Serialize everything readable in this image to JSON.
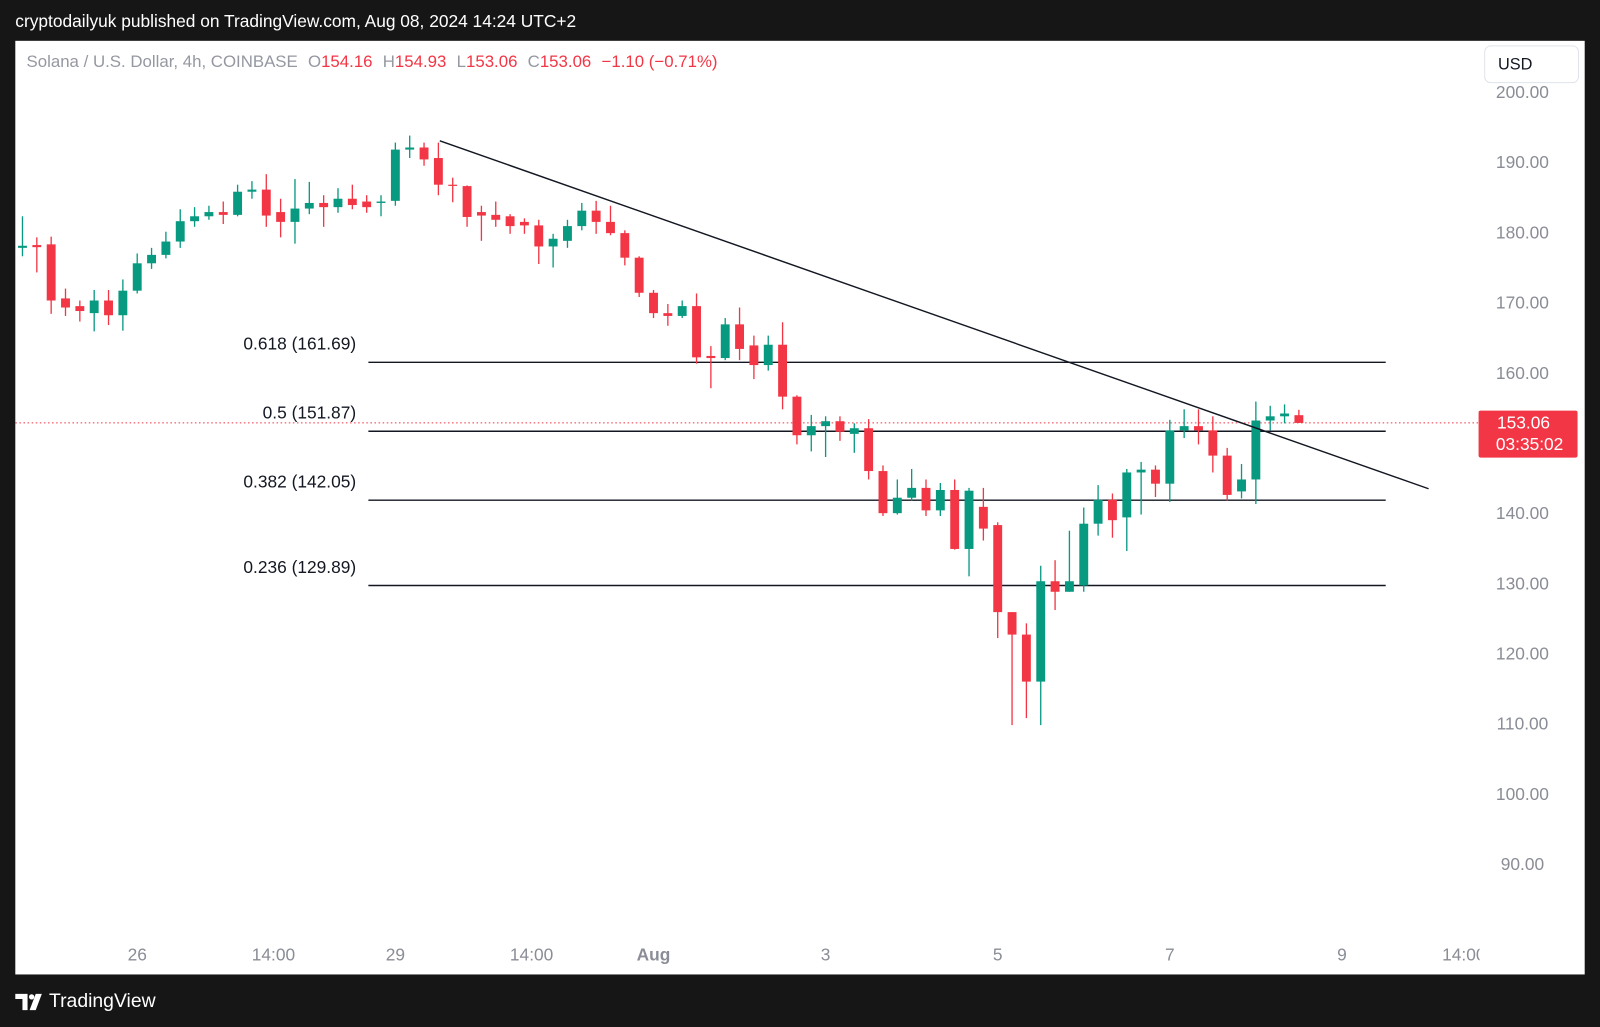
{
  "header": {
    "published": "cryptodailyuk published on TradingView.com, Aug 08, 2024 14:24 UTC+2"
  },
  "footer": {
    "brand": "TradingView"
  },
  "chart_data": {
    "type": "candlestick",
    "title": "Solana / U.S. Dollar, 4h, COINBASE",
    "ohlc_letters": [
      "O",
      "H",
      "L",
      "C"
    ],
    "change": "−1.10 (−0.71%)",
    "currency": "USD",
    "countdown": "03:35:02",
    "up_color": "#089981",
    "down_color": "#f23645",
    "x": [
      0,
      1,
      2,
      3,
      4,
      5,
      6,
      7,
      8,
      9,
      10,
      11,
      12,
      13,
      14,
      15,
      16,
      17,
      18,
      19,
      20,
      21,
      22,
      23,
      24,
      25,
      26,
      27,
      28,
      29,
      30,
      31,
      32,
      33,
      34,
      35,
      36,
      37,
      38,
      39,
      40,
      41,
      42,
      43,
      44,
      45,
      46,
      47,
      48,
      49,
      50,
      51,
      52,
      53,
      54,
      55,
      56,
      57,
      58,
      59,
      60,
      61,
      62,
      63,
      64,
      65,
      66,
      67,
      68,
      69,
      70,
      71,
      72,
      73,
      74,
      75,
      76,
      77,
      78,
      79,
      80,
      81,
      82,
      83,
      84,
      85,
      86,
      87,
      88,
      89
    ],
    "open": [
      178.0,
      178.4,
      178.5,
      170.8,
      169.7,
      168.7,
      170.5,
      168.4,
      171.9,
      175.8,
      177,
      178.9,
      181.8,
      182.5,
      183.1,
      182.7,
      186,
      186.3,
      183.1,
      181.7,
      183.6,
      184.4,
      183.8,
      185.0,
      184.6,
      184.4,
      184.7,
      192,
      192.3,
      190.8,
      187,
      186.8,
      183.1,
      182.7,
      182.5,
      181.7,
      181.2,
      178.2,
      179,
      181.1,
      183.3,
      181.7,
      180.1,
      176.6,
      171.6,
      168.7,
      168.3,
      169.7,
      162.6,
      162.3,
      167.1,
      164.1,
      161.3,
      164.2,
      156.8,
      151.3,
      152.6,
      153.3,
      151.5,
      152.3,
      146.2,
      140.2,
      142.4,
      143.8,
      140.6,
      143.5,
      135.1,
      141.1,
      138.5,
      126.1,
      122.9,
      116.2,
      130.5,
      129.0,
      129.9,
      138.7,
      142.1,
      139.6,
      146,
      146.4,
      144.4,
      152,
      152.6,
      152,
      148.4,
      143.3,
      145,
      153.4,
      154,
      154.16
    ],
    "high": [
      182.5,
      179.5,
      179.6,
      172.2,
      170.5,
      172,
      172,
      173.5,
      177.2,
      178,
      180.3,
      183.5,
      183.8,
      184,
      184.6,
      187,
      187.5,
      188.5,
      185,
      187.8,
      187.4,
      185.5,
      186.5,
      187,
      185.5,
      185.5,
      193,
      194,
      193,
      193,
      188,
      186.9,
      184,
      184.6,
      182.8,
      182.2,
      182,
      180,
      182,
      184.4,
      184.7,
      184,
      180.5,
      176.8,
      172,
      170,
      170.5,
      171.5,
      164,
      168,
      169.5,
      165.5,
      165.5,
      167.4,
      157,
      154.2,
      154,
      154,
      153,
      153.6,
      147,
      145,
      146.5,
      145,
      144.5,
      145,
      143.8,
      143.8,
      138.9,
      126.1,
      124.5,
      132.7,
      133.5,
      137.7,
      141,
      144.2,
      143,
      146.5,
      147.5,
      147,
      153.5,
      155,
      155,
      154,
      149.5,
      147.2,
      156.1,
      155.5,
      155.7,
      154.93
    ],
    "low": [
      176.8,
      174.5,
      168.6,
      168.3,
      167.5,
      166.1,
      167,
      166.2,
      171.5,
      175,
      176.5,
      178,
      181,
      182,
      181.4,
      182.5,
      185,
      181,
      179.5,
      178.6,
      182.8,
      181,
      183,
      183.5,
      183,
      182.5,
      184,
      190.8,
      189.7,
      185.5,
      184.5,
      181,
      179,
      181,
      180,
      180,
      175.7,
      175.2,
      178,
      180.5,
      180,
      179.8,
      175.5,
      171,
      168,
      166.9,
      168,
      161.5,
      158,
      162,
      162,
      159.3,
      160.5,
      155,
      150,
      149,
      148.2,
      150.5,
      148.8,
      145,
      139.8,
      140,
      142,
      139.8,
      139.8,
      135,
      131.2,
      136.3,
      122.4,
      110,
      111,
      110,
      126.4,
      129,
      129,
      137,
      136.7,
      134.8,
      140,
      142.5,
      141.8,
      150.9,
      150,
      146,
      142,
      142.3,
      141.5,
      152,
      153,
      153.06
    ],
    "close": [
      178.3,
      178.1,
      170.5,
      169.5,
      169.0,
      170.5,
      168.4,
      171.9,
      175.8,
      177.0,
      178.9,
      181.8,
      182.5,
      183.1,
      182.7,
      186.0,
      186.3,
      182.6,
      181.7,
      183.6,
      184.4,
      183.8,
      185.0,
      184.1,
      183.8,
      184.6,
      192.0,
      192.3,
      190.6,
      187.0,
      186.9,
      182.4,
      182.6,
      182.0,
      181.1,
      181.2,
      178.2,
      179.3,
      181.1,
      183.3,
      181.7,
      180.1,
      176.6,
      171.6,
      168.7,
      168.3,
      169.7,
      162.4,
      162.3,
      167.1,
      163.6,
      161.3,
      164.2,
      156.8,
      151.3,
      152.6,
      153.3,
      151.8,
      152.3,
      146.2,
      140.2,
      142.4,
      143.8,
      140.6,
      143.5,
      135.1,
      143.4,
      138.0,
      126.1,
      122.9,
      116.2,
      130.5,
      129.0,
      130.5,
      138.7,
      142.1,
      139.2,
      146.0,
      146.4,
      144.4,
      152.0,
      152.6,
      152.0,
      148.4,
      142.8,
      145.0,
      153.4,
      154.0,
      154.4,
      153.06
    ],
    "xlim": [
      -0.5,
      101.6
    ],
    "xticks": [
      {
        "value": 8,
        "label": "26"
      },
      {
        "value": 17.5,
        "label": "14:00"
      },
      {
        "value": 26,
        "label": "29"
      },
      {
        "value": 35.5,
        "label": "14:00"
      },
      {
        "value": 44,
        "label": "Aug"
      },
      {
        "value": 56,
        "label": "3"
      },
      {
        "value": 68,
        "label": "5"
      },
      {
        "value": 80,
        "label": "7"
      },
      {
        "value": 92,
        "label": "9"
      },
      {
        "value": 100.5,
        "label": "14:00"
      }
    ],
    "ylim": [
      80,
      207.5
    ],
    "yticks": [
      {
        "value": 90,
        "label": "90.00"
      },
      {
        "value": 100,
        "label": "100.00"
      },
      {
        "value": 110,
        "label": "110.00"
      },
      {
        "value": 120,
        "label": "120.00"
      },
      {
        "value": 130,
        "label": "130.00"
      },
      {
        "value": 140,
        "label": "140.00"
      },
      {
        "value": 150,
        "label": "150.00"
      },
      {
        "value": 160,
        "label": "160.00"
      },
      {
        "value": 170,
        "label": "170.00"
      },
      {
        "value": 180,
        "label": "180.00"
      },
      {
        "value": 190,
        "label": "190.00"
      },
      {
        "value": 200,
        "label": "200.00"
      }
    ],
    "fib_levels": [
      {
        "value": 161.69,
        "label": "0.618 (161.69)"
      },
      {
        "value": 151.87,
        "label": "0.5 (151.87)"
      },
      {
        "value": 142.05,
        "label": "0.382 (142.05)"
      },
      {
        "value": 129.89,
        "label": "0.236 (129.89)"
      }
    ],
    "grid": false
  }
}
